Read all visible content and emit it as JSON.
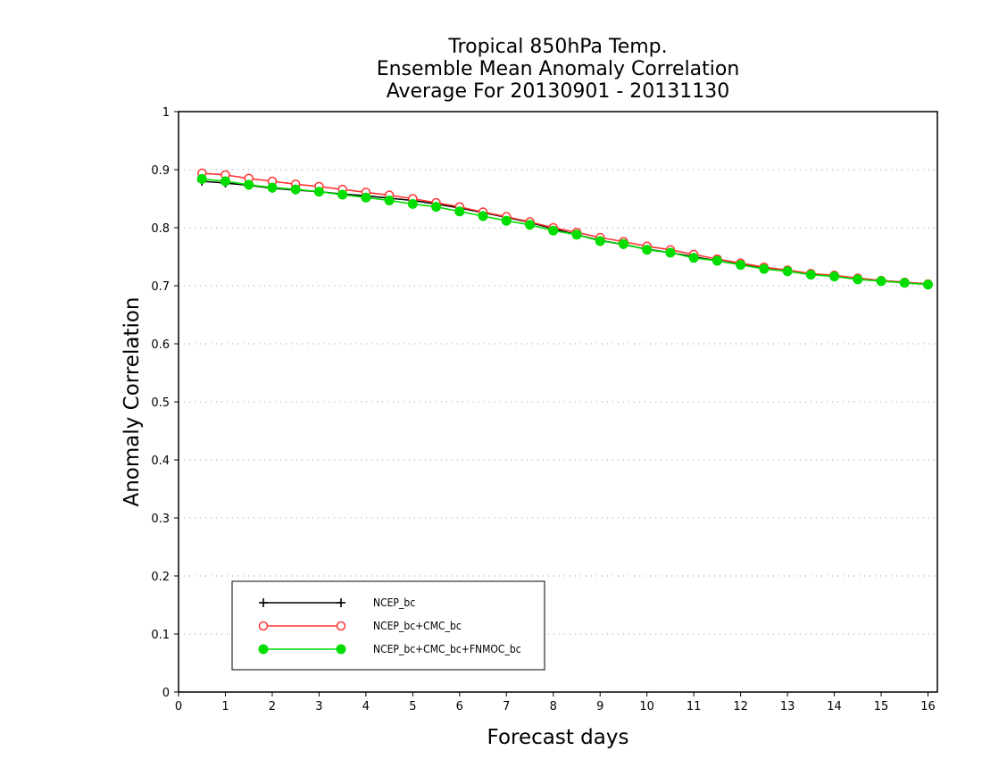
{
  "chart_data": {
    "type": "line",
    "title": [
      "Tropical 850hPa Temp.",
      "Ensemble Mean Anomaly Correlation",
      "Average For 20130901 - 20131130"
    ],
    "xlabel": "Forecast days",
    "ylabel": "Anomaly Correlation",
    "xlim": [
      0,
      16.2
    ],
    "ylim": [
      0,
      1
    ],
    "xticks": [
      0,
      1,
      2,
      3,
      4,
      5,
      6,
      7,
      8,
      9,
      10,
      11,
      12,
      13,
      14,
      15,
      16
    ],
    "yticks": [
      0,
      0.1,
      0.2,
      0.3,
      0.4,
      0.5,
      0.6,
      0.7,
      0.8,
      0.9,
      1
    ],
    "ytick_labels": [
      "0",
      "0.1",
      "0.2",
      "0.3",
      "0.4",
      "0.5",
      "0.6",
      "0.7",
      "0.8",
      "0.9",
      "1"
    ],
    "grid": "horizontal dotted",
    "legend_position": "bottom-left",
    "x": [
      0.5,
      1,
      1.5,
      2,
      2.5,
      3,
      3.5,
      4,
      4.5,
      5,
      5.5,
      6,
      6.5,
      7,
      7.5,
      8,
      8.5,
      9,
      9.5,
      10,
      10.5,
      11,
      11.5,
      12,
      12.5,
      13,
      13.5,
      14,
      14.5,
      15,
      15.5,
      16
    ],
    "series": [
      {
        "name": "NCEP_bc",
        "color": "#000000",
        "marker": "plus",
        "values": [
          0.88,
          0.877,
          0.873,
          0.868,
          0.865,
          0.862,
          0.858,
          0.855,
          0.851,
          0.847,
          0.841,
          0.834,
          0.826,
          0.818,
          0.809,
          0.798,
          0.788,
          0.778,
          0.771,
          0.763,
          0.757,
          0.75,
          0.743,
          0.737,
          0.731,
          0.726,
          0.721,
          0.717,
          0.713,
          0.709,
          0.706,
          0.703
        ]
      },
      {
        "name": "NCEP_bc+CMC_bc",
        "color": "#ff3333",
        "marker": "open-circle",
        "values": [
          0.894,
          0.891,
          0.885,
          0.88,
          0.875,
          0.871,
          0.866,
          0.861,
          0.856,
          0.85,
          0.843,
          0.836,
          0.827,
          0.819,
          0.81,
          0.8,
          0.792,
          0.783,
          0.776,
          0.768,
          0.762,
          0.754,
          0.746,
          0.739,
          0.732,
          0.727,
          0.721,
          0.718,
          0.713,
          0.709,
          0.706,
          0.703
        ]
      },
      {
        "name": "NCEP_bc+CMC_bc+FNMOC_bc",
        "color": "#00dd00",
        "marker": "filled-circle",
        "values": [
          0.884,
          0.88,
          0.874,
          0.869,
          0.866,
          0.862,
          0.857,
          0.852,
          0.847,
          0.841,
          0.836,
          0.828,
          0.82,
          0.812,
          0.805,
          0.795,
          0.788,
          0.777,
          0.772,
          0.762,
          0.757,
          0.748,
          0.743,
          0.736,
          0.729,
          0.725,
          0.719,
          0.716,
          0.711,
          0.708,
          0.705,
          0.702
        ]
      }
    ]
  }
}
